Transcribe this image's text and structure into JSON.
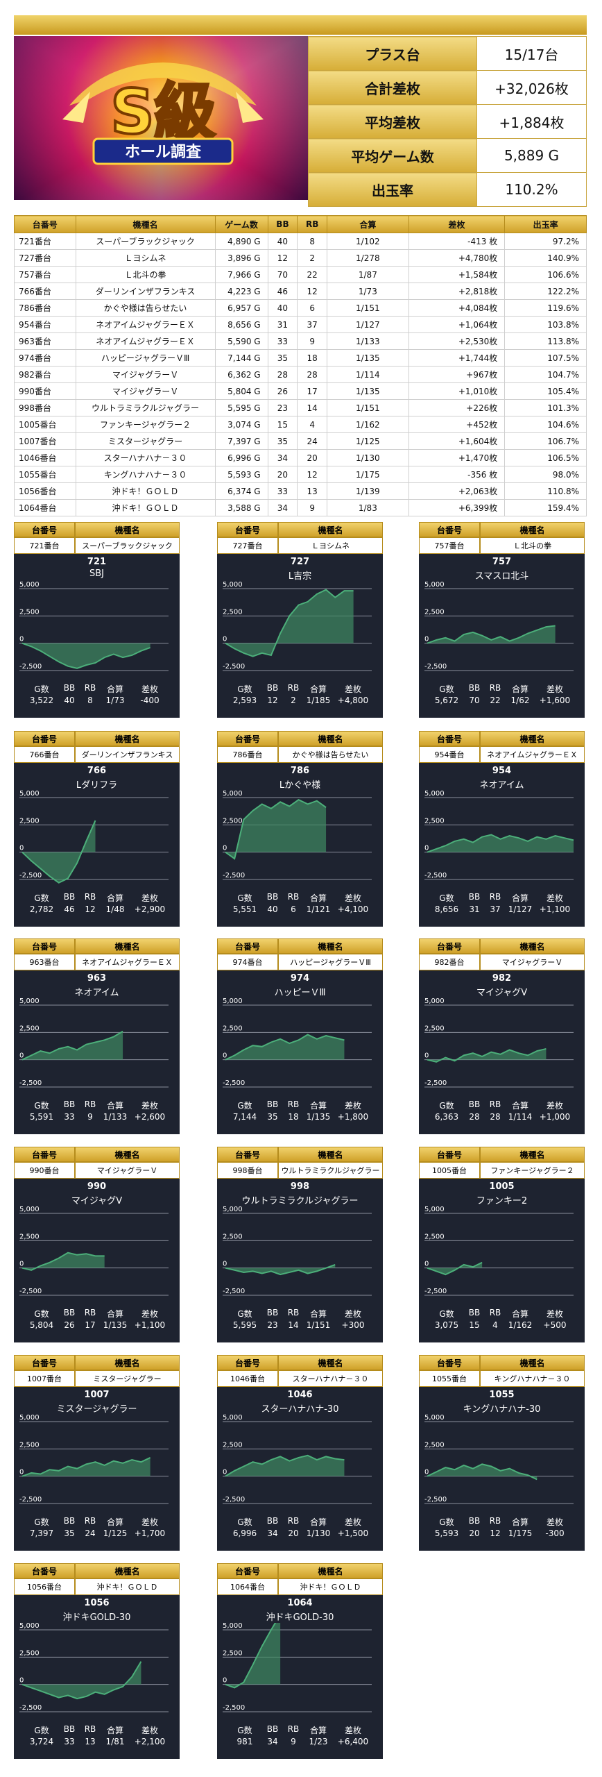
{
  "summary": [
    {
      "label": "プラス台",
      "value": "15/17台"
    },
    {
      "label": "合計差枚",
      "value": "+32,026枚"
    },
    {
      "label": "平均差枚",
      "value": "+1,884枚"
    },
    {
      "label": "平均ゲーム数",
      "value": "5,889 G"
    },
    {
      "label": "出玉率",
      "value": "110.2%"
    }
  ],
  "hero": {
    "main": "S級",
    "sub": "ホール調査"
  },
  "table_headers": [
    "台番号",
    "機種名",
    "ゲーム数",
    "BB",
    "RB",
    "合算",
    "差枚",
    "出玉率"
  ],
  "rows": [
    {
      "no": "721番台",
      "model": "スーパーブラックジャック",
      "games": "4,890 G",
      "bb": "40",
      "rb": "8",
      "gassan": "1/102",
      "diff": "-413 枚",
      "rate": "97.2%",
      "sign": "neg"
    },
    {
      "no": "727番台",
      "model": "Ｌヨシムネ",
      "games": "3,896 G",
      "bb": "12",
      "rb": "2",
      "gassan": "1/278",
      "diff": "+4,780枚",
      "rate": "140.9%",
      "sign": "pos"
    },
    {
      "no": "757番台",
      "model": "Ｌ北斗の拳",
      "games": "7,966 G",
      "bb": "70",
      "rb": "22",
      "gassan": "1/87",
      "diff": "+1,584枚",
      "rate": "106.6%",
      "sign": "pos"
    },
    {
      "no": "766番台",
      "model": "ダーリンインザフランキス",
      "games": "4,223 G",
      "bb": "46",
      "rb": "12",
      "gassan": "1/73",
      "diff": "+2,818枚",
      "rate": "122.2%",
      "sign": "pos"
    },
    {
      "no": "786番台",
      "model": "かぐや様は告らせたい",
      "games": "6,957 G",
      "bb": "40",
      "rb": "6",
      "gassan": "1/151",
      "diff": "+4,084枚",
      "rate": "119.6%",
      "sign": "pos"
    },
    {
      "no": "954番台",
      "model": "ネオアイムジャグラーＥＸ",
      "games": "8,656 G",
      "bb": "31",
      "rb": "37",
      "gassan": "1/127",
      "diff": "+1,064枚",
      "rate": "103.8%",
      "sign": "pos"
    },
    {
      "no": "963番台",
      "model": "ネオアイムジャグラーＥＸ",
      "games": "5,590 G",
      "bb": "33",
      "rb": "9",
      "gassan": "1/133",
      "diff": "+2,530枚",
      "rate": "113.8%",
      "sign": "pos"
    },
    {
      "no": "974番台",
      "model": "ハッピージャグラーＶⅢ",
      "games": "7,144 G",
      "bb": "35",
      "rb": "18",
      "gassan": "1/135",
      "diff": "+1,744枚",
      "rate": "107.5%",
      "sign": "pos"
    },
    {
      "no": "982番台",
      "model": "マイジャグラーＶ",
      "games": "6,362 G",
      "bb": "28",
      "rb": "28",
      "gassan": "1/114",
      "diff": "+967枚",
      "rate": "104.7%",
      "sign": "pos"
    },
    {
      "no": "990番台",
      "model": "マイジャグラーＶ",
      "games": "5,804 G",
      "bb": "26",
      "rb": "17",
      "gassan": "1/135",
      "diff": "+1,010枚",
      "rate": "105.4%",
      "sign": "pos"
    },
    {
      "no": "998番台",
      "model": "ウルトラミラクルジャグラー",
      "games": "5,595 G",
      "bb": "23",
      "rb": "14",
      "gassan": "1/151",
      "diff": "+226枚",
      "rate": "101.3%",
      "sign": "pos"
    },
    {
      "no": "1005番台",
      "model": "ファンキージャグラー２",
      "games": "3,074 G",
      "bb": "15",
      "rb": "4",
      "gassan": "1/162",
      "diff": "+452枚",
      "rate": "104.6%",
      "sign": "pos"
    },
    {
      "no": "1007番台",
      "model": "ミスタージャグラー",
      "games": "7,397 G",
      "bb": "35",
      "rb": "24",
      "gassan": "1/125",
      "diff": "+1,604枚",
      "rate": "106.7%",
      "sign": "pos"
    },
    {
      "no": "1046番台",
      "model": "スターハナハナ－３０",
      "games": "6,996 G",
      "bb": "34",
      "rb": "20",
      "gassan": "1/130",
      "diff": "+1,470枚",
      "rate": "106.5%",
      "sign": "pos"
    },
    {
      "no": "1055番台",
      "model": "キングハナハナ－３０",
      "games": "5,593 G",
      "bb": "20",
      "rb": "12",
      "gassan": "1/175",
      "diff": "-356 枚",
      "rate": "98.0%",
      "sign": "neg"
    },
    {
      "no": "1056番台",
      "model": "沖ドキ！ＧＯＬＤ",
      "games": "6,374 G",
      "bb": "33",
      "rb": "13",
      "gassan": "1/139",
      "diff": "+2,063枚",
      "rate": "110.8%",
      "sign": "pos"
    },
    {
      "no": "1064番台",
      "model": "沖ドキ！ＧＯＬＤ",
      "games": "3,588 G",
      "bb": "34",
      "rb": "9",
      "gassan": "1/83",
      "diff": "+6,399枚",
      "rate": "159.4%",
      "sign": "pos"
    }
  ],
  "card_header_labels": {
    "no": "台番号",
    "model": "機種名"
  },
  "stat_labels": [
    "G数",
    "BB",
    "RB",
    "合算",
    "差枚"
  ],
  "colors": {
    "gold": "#d6ad37",
    "panel": "#1e2330",
    "line": "#4caf7a",
    "fill": "#3f8a63"
  },
  "chart_data": [
    {
      "type": "area",
      "machine_no": "721",
      "title": "SBJ",
      "header_no": "721番台",
      "header_model": "スーパーブラックジャック",
      "yticks": [
        "5,000",
        "2,500",
        "0",
        "-2,500"
      ],
      "ylim": [
        -2500,
        5000
      ],
      "values": [
        0,
        -300,
        -700,
        -1200,
        -1700,
        -2100,
        -2300,
        -2000,
        -1800,
        -1300,
        -1000,
        -1300,
        -1100,
        -700,
        -400
      ],
      "stats": [
        "3,522",
        "40",
        "8",
        "1/73",
        "-400"
      ]
    },
    {
      "type": "area",
      "machine_no": "727",
      "title": "L吉宗",
      "header_no": "727番台",
      "header_model": "Ｌヨシムネ",
      "yticks": [
        "5,000",
        "2,500",
        "0",
        "-2,500"
      ],
      "ylim": [
        -2500,
        5000
      ],
      "values": [
        0,
        -500,
        -900,
        -1200,
        -900,
        -1100,
        900,
        2500,
        3500,
        3800,
        4500,
        4900,
        4200,
        4800,
        4800
      ],
      "stats": [
        "2,593",
        "12",
        "2",
        "1/185",
        "+4,800"
      ]
    },
    {
      "type": "area",
      "machine_no": "757",
      "title": "スマスロ北斗",
      "header_no": "757番台",
      "header_model": "Ｌ北斗の拳",
      "yticks": [
        "5,000",
        "2,500",
        "0",
        "-2,500"
      ],
      "ylim": [
        -2500,
        5000
      ],
      "values": [
        0,
        300,
        500,
        200,
        800,
        1000,
        700,
        300,
        600,
        200,
        500,
        900,
        1200,
        1500,
        1600
      ],
      "stats": [
        "5,672",
        "70",
        "22",
        "1/62",
        "+1,600"
      ]
    },
    {
      "type": "area",
      "machine_no": "766",
      "title": "Lダリフラ",
      "header_no": "766番台",
      "header_model": "ダーリンインザフランキス",
      "yticks": [
        "5,000",
        "2,500",
        "0",
        "-2,500"
      ],
      "ylim": [
        -2500,
        5000
      ],
      "values": [
        0,
        -800,
        -1500,
        -2200,
        -2800,
        -2400,
        -1000,
        1000,
        2900
      ],
      "stats": [
        "2,782",
        "46",
        "12",
        "1/48",
        "+2,900"
      ]
    },
    {
      "type": "area",
      "machine_no": "786",
      "title": "Lかぐや様",
      "header_no": "786番台",
      "header_model": "かぐや様は告らせたい",
      "yticks": [
        "5,000",
        "2,500",
        "0",
        "-2,500"
      ],
      "ylim": [
        -2500,
        5000
      ],
      "values": [
        0,
        -600,
        3000,
        3800,
        4400,
        4000,
        4600,
        4200,
        4800,
        4400,
        4700,
        4100
      ],
      "stats": [
        "5,551",
        "40",
        "6",
        "1/121",
        "+4,100"
      ]
    },
    {
      "type": "area",
      "machine_no": "954",
      "title": "ネオアイム",
      "header_no": "954番台",
      "header_model": "ネオアイムジャグラーＥＸ",
      "yticks": [
        "5,000",
        "2,500",
        "0",
        "-2,500"
      ],
      "ylim": [
        -2500,
        5000
      ],
      "values": [
        0,
        300,
        600,
        1000,
        1200,
        900,
        1400,
        1600,
        1200,
        1500,
        1300,
        1000,
        1400,
        1200,
        1500,
        1300,
        1100
      ],
      "stats": [
        "8,656",
        "31",
        "37",
        "1/127",
        "+1,100"
      ]
    },
    {
      "type": "area",
      "machine_no": "963",
      "title": "ネオアイム",
      "header_no": "963番台",
      "header_model": "ネオアイムジャグラーＥＸ",
      "yticks": [
        "5,000",
        "2,500",
        "0",
        "-2,500"
      ],
      "ylim": [
        -2500,
        5000
      ],
      "values": [
        0,
        400,
        800,
        600,
        1000,
        1200,
        900,
        1400,
        1600,
        1800,
        2100,
        2600
      ],
      "stats": [
        "5,591",
        "33",
        "9",
        "1/133",
        "+2,600"
      ]
    },
    {
      "type": "area",
      "machine_no": "974",
      "title": "ハッピーＶⅢ",
      "header_no": "974番台",
      "header_model": "ハッピージャグラーＶⅢ",
      "yticks": [
        "5,000",
        "2,500",
        "0",
        "-2,500"
      ],
      "ylim": [
        -2500,
        5000
      ],
      "values": [
        0,
        400,
        900,
        1300,
        1200,
        1600,
        1900,
        1500,
        1800,
        2300,
        1900,
        2200,
        2000,
        1800
      ],
      "stats": [
        "7,144",
        "35",
        "18",
        "1/135",
        "+1,800"
      ]
    },
    {
      "type": "area",
      "machine_no": "982",
      "title": "マイジャグV",
      "header_no": "982番台",
      "header_model": "マイジャグラーＶ",
      "yticks": [
        "5,000",
        "2,500",
        "0",
        "-2,500"
      ],
      "ylim": [
        -2500,
        5000
      ],
      "values": [
        0,
        -200,
        200,
        -100,
        400,
        600,
        300,
        700,
        500,
        900,
        600,
        400,
        800,
        1000
      ],
      "stats": [
        "6,363",
        "28",
        "28",
        "1/114",
        "+1,000"
      ]
    },
    {
      "type": "area",
      "machine_no": "990",
      "title": "マイジャグV",
      "header_no": "990番台",
      "header_model": "マイジャグラーＶ",
      "yticks": [
        "5,000",
        "2,500",
        "0",
        "-2,500"
      ],
      "ylim": [
        -2500,
        5000
      ],
      "values": [
        0,
        -200,
        200,
        500,
        900,
        1400,
        1200,
        1300,
        1100,
        1100
      ],
      "stats": [
        "5,804",
        "26",
        "17",
        "1/135",
        "+1,100"
      ]
    },
    {
      "type": "area",
      "machine_no": "998",
      "title": "ウルトラミラクルジャグラー",
      "header_no": "998番台",
      "header_model": "ウルトラミラクルジャグラー",
      "yticks": [
        "5,000",
        "2,500",
        "0",
        "-2,500"
      ],
      "ylim": [
        -2500,
        5000
      ],
      "values": [
        0,
        -200,
        -400,
        -300,
        -500,
        -300,
        -600,
        -400,
        -200,
        -500,
        -300,
        0,
        300
      ],
      "stats": [
        "5,595",
        "23",
        "14",
        "1/151",
        "+300"
      ]
    },
    {
      "type": "area",
      "machine_no": "1005",
      "title": "ファンキー2",
      "header_no": "1005番台",
      "header_model": "ファンキージャグラー２",
      "yticks": [
        "5,000",
        "2,500",
        "0",
        "-2,500"
      ],
      "ylim": [
        -2500,
        5000
      ],
      "values": [
        0,
        -300,
        -600,
        -200,
        300,
        100,
        500
      ],
      "stats": [
        "3,075",
        "15",
        "4",
        "1/162",
        "+500"
      ]
    },
    {
      "type": "area",
      "machine_no": "1007",
      "title": "ミスタージャグラー",
      "header_no": "1007番台",
      "header_model": "ミスタージャグラー",
      "yticks": [
        "5,000",
        "2,500",
        "0",
        "-2,500"
      ],
      "ylim": [
        -2500,
        5000
      ],
      "values": [
        0,
        300,
        200,
        600,
        500,
        900,
        700,
        1100,
        1300,
        1000,
        1400,
        1200,
        1500,
        1300,
        1700
      ],
      "stats": [
        "7,397",
        "35",
        "24",
        "1/125",
        "+1,700"
      ]
    },
    {
      "type": "area",
      "machine_no": "1046",
      "title": "スターハナハナ-30",
      "header_no": "1046番台",
      "header_model": "スターハナハナ－３０",
      "yticks": [
        "5,000",
        "2,500",
        "0",
        "-2,500"
      ],
      "ylim": [
        -2500,
        5000
      ],
      "values": [
        0,
        500,
        900,
        1300,
        1100,
        1500,
        1800,
        1400,
        1700,
        1900,
        1500,
        1800,
        1600,
        1500
      ],
      "stats": [
        "6,996",
        "34",
        "20",
        "1/130",
        "+1,500"
      ]
    },
    {
      "type": "area",
      "machine_no": "1055",
      "title": "キングハナハナ-30",
      "header_no": "1055番台",
      "header_model": "キングハナハナ－３０",
      "yticks": [
        "5,000",
        "2,500",
        "0",
        "-2,500"
      ],
      "ylim": [
        -2500,
        5000
      ],
      "values": [
        0,
        400,
        800,
        600,
        1000,
        700,
        1100,
        900,
        500,
        700,
        300,
        100,
        -300
      ],
      "stats": [
        "5,593",
        "20",
        "12",
        "1/175",
        "-300"
      ]
    },
    {
      "type": "area",
      "machine_no": "1056",
      "title": "沖ドキGOLD-30",
      "header_no": "1056番台",
      "header_model": "沖ドキ！ＧＯＬＤ",
      "yticks": [
        "5,000",
        "2,500",
        "0",
        "-2,500"
      ],
      "ylim": [
        -2500,
        5000
      ],
      "values": [
        0,
        -300,
        -600,
        -900,
        -1200,
        -1000,
        -1300,
        -1100,
        -700,
        -900,
        -500,
        -200,
        700,
        2100
      ],
      "stats": [
        "3,724",
        "33",
        "13",
        "1/81",
        "+2,100"
      ]
    },
    {
      "type": "area",
      "machine_no": "1064",
      "title": "沖ドキGOLD-30",
      "header_no": "1064番台",
      "header_model": "沖ドキ！ＧＯＬＤ",
      "yticks": [
        "5,000",
        "2,500",
        "0",
        "-2,500"
      ],
      "ylim": [
        -2500,
        5000
      ],
      "values": [
        0,
        -300,
        200,
        1800,
        3500,
        5000,
        6400
      ],
      "stats": [
        "981",
        "34",
        "9",
        "1/23",
        "+6,400"
      ]
    }
  ]
}
